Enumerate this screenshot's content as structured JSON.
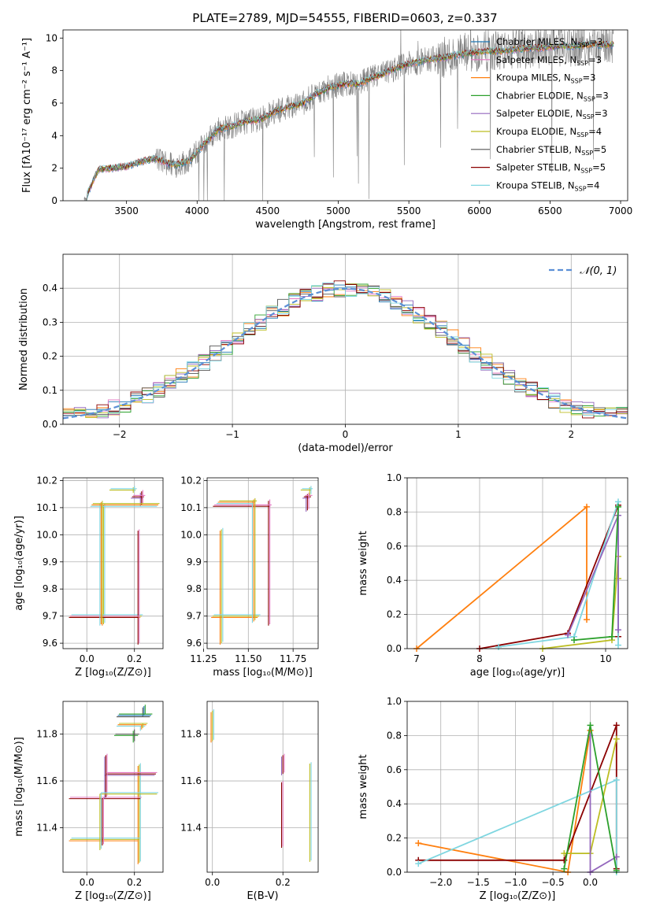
{
  "title": "PLATE=2789, MJD=54555, FIBERID=0603, z=0.337",
  "colors": {
    "chabrier_miles": "#1f77b4",
    "salpeter_miles": "#e377c2",
    "kroupa_miles": "#ff7f0e",
    "chabrier_elodie": "#2ca02c",
    "salpeter_elodie": "#9467bd",
    "kroupa_elodie": "#bcbd22",
    "chabrier_stelib": "#555555",
    "salpeter_stelib": "#8b0000",
    "kroupa_stelib": "#7fd6e0",
    "data": "#808080",
    "normal": "#5b8fd6"
  },
  "chart_data": [
    {
      "id": "spectrum",
      "type": "line",
      "xlabel": "wavelength [Angstrom, rest frame]",
      "ylabel": "Flux [fλ10⁻¹⁷ erg cm⁻² s⁻¹ A⁻¹]",
      "xlim": [
        3050,
        7050
      ],
      "ylim": [
        0,
        10.5
      ],
      "xticks": [
        "3500",
        "4000",
        "4500",
        "5000",
        "5500",
        "6000",
        "6500",
        "7000"
      ],
      "yticks": [
        "0",
        "2",
        "4",
        "6",
        "8",
        "10"
      ],
      "grid": false,
      "legend_position": "top-right",
      "x": [
        3200,
        3300,
        3400,
        3500,
        3600,
        3700,
        3800,
        3850,
        3950,
        4050,
        4150,
        4250,
        4350,
        4450,
        4550,
        4650,
        4750,
        4850,
        4950,
        5050,
        5150,
        5250,
        5350,
        5450,
        5550,
        5650,
        5750,
        5850,
        5950,
        6050,
        6150,
        6250,
        6350,
        6450,
        6550,
        6650,
        6750,
        6850,
        6950
      ],
      "y_model": [
        0.0,
        1.9,
        2.0,
        2.1,
        2.4,
        2.6,
        2.3,
        2.2,
        2.5,
        3.5,
        4.4,
        4.6,
        4.9,
        5.0,
        5.5,
        5.8,
        6.0,
        6.6,
        7.0,
        7.2,
        7.2,
        7.6,
        7.9,
        8.3,
        8.5,
        8.7,
        8.8,
        9.0,
        9.1,
        9.2,
        9.2,
        9.3,
        9.4,
        9.4,
        9.5,
        9.5,
        9.6,
        9.6,
        9.6
      ],
      "series": [
        {
          "name": "Chabrier MILES, N_SSP=3",
          "label_parts": [
            "Chabrier MILES, N",
            "SSP",
            "=3"
          ]
        },
        {
          "name": "Salpeter MILES, N_SSP=3",
          "label_parts": [
            "Salpeter MILES, N",
            "SSP",
            "=3"
          ]
        },
        {
          "name": "Kroupa MILES, N_SSP=3",
          "label_parts": [
            "Kroupa MILES, N",
            "SSP",
            "=3"
          ]
        },
        {
          "name": "Chabrier ELODIE, N_SSP=3",
          "label_parts": [
            "Chabrier ELODIE, N",
            "SSP",
            "=3"
          ]
        },
        {
          "name": "Salpeter ELODIE, N_SSP=3",
          "label_parts": [
            "Salpeter ELODIE, N",
            "SSP",
            "=3"
          ]
        },
        {
          "name": "Kroupa ELODIE, N_SSP=4",
          "label_parts": [
            "Kroupa ELODIE, N",
            "SSP",
            "=4"
          ]
        },
        {
          "name": "Chabrier STELIB, N_SSP=5",
          "label_parts": [
            "Chabrier STELIB, N",
            "SSP",
            "=5"
          ]
        },
        {
          "name": "Salpeter STELIB, N_SSP=5",
          "label_parts": [
            "Salpeter STELIB, N",
            "SSP",
            "=5"
          ]
        },
        {
          "name": "Kroupa STELIB, N_SSP=4",
          "label_parts": [
            "Kroupa STELIB, N",
            "SSP",
            "=4"
          ]
        }
      ]
    },
    {
      "id": "residuals",
      "type": "bar",
      "xlabel": "(data-model)/error",
      "ylabel": "Normed distribution",
      "xlim": [
        -2.5,
        2.5
      ],
      "ylim": [
        0,
        0.5
      ],
      "xticks": [
        "−2",
        "−1",
        "0",
        "1",
        "2"
      ],
      "yticks": [
        "0.0",
        "0.1",
        "0.2",
        "0.3",
        "0.4"
      ],
      "grid": true,
      "legend_position": "top-right",
      "legend_label": "𝒩(0, 1)",
      "bin_width": 0.1,
      "bin_start": -2.5,
      "hist": [
        0.025,
        0.03,
        0.035,
        0.04,
        0.045,
        0.05,
        0.06,
        0.07,
        0.08,
        0.09,
        0.1,
        0.11,
        0.125,
        0.14,
        0.155,
        0.17,
        0.185,
        0.2,
        0.215,
        0.23,
        0.245,
        0.26,
        0.275,
        0.29,
        0.305,
        0.32,
        0.335,
        0.35,
        0.36,
        0.37,
        0.38,
        0.39,
        0.4,
        0.405,
        0.41,
        0.405,
        0.4,
        0.39,
        0.38,
        0.37,
        0.36,
        0.345,
        0.33,
        0.315,
        0.3,
        0.285,
        0.27,
        0.255,
        0.24,
        0.225,
        0.21,
        0.195,
        0.18,
        0.165,
        0.15,
        0.135,
        0.12,
        0.105,
        0.09,
        0.08,
        0.07,
        0.06,
        0.055,
        0.05,
        0.045,
        0.04,
        0.035,
        0.03,
        0.03,
        0.025,
        0.025,
        0.02,
        0.02,
        0.02,
        0.02,
        0.02,
        0.02,
        0.02,
        0.02,
        0.02,
        0.02,
        0.02,
        0.02,
        0.02,
        0.02,
        0.02,
        0.02,
        0.02,
        0.02,
        0.02,
        0.02,
        0.02,
        0.02,
        0.02,
        0.02,
        0.02,
        0.02,
        0.02,
        0.02,
        0.02
      ]
    },
    {
      "id": "age_vs_Z",
      "type": "scatter",
      "xlabel": "Z [log₁₀(Z/Z⊙)]",
      "ylabel": "age  [log₁₀(age/yr)]",
      "xlim": [
        -0.1,
        0.32
      ],
      "ylim": [
        9.58,
        10.21
      ],
      "xticks": [
        "0.0",
        "0.2"
      ],
      "yticks": [
        "9.6",
        "9.7",
        "9.8",
        "9.9",
        "10.0",
        "10.1",
        "10.2"
      ],
      "grid": true,
      "points": [
        {
          "x": 0.07,
          "y": 9.7,
          "xerr": [
            0.14,
            0.16
          ],
          "yerr": [
            0.03,
            0.41
          ]
        },
        {
          "x": 0.22,
          "y": 9.7,
          "xerr": [
            0.29,
            0.0
          ],
          "yerr": [
            0.1,
            0.32
          ]
        },
        {
          "x": 0.23,
          "y": 10.14,
          "xerr": [
            0.04,
            0.01
          ],
          "yerr": [
            0.03,
            0.02
          ]
        },
        {
          "x": 0.2,
          "y": 10.17,
          "xerr": [
            0.1,
            0.01
          ],
          "yerr": [
            0.01,
            0.01
          ]
        },
        {
          "x": 0.06,
          "y": 10.11,
          "xerr": [
            0.04,
            0.24
          ],
          "yerr": [
            0.44,
            0.01
          ]
        }
      ]
    },
    {
      "id": "age_vs_mass",
      "type": "scatter",
      "xlabel": "mass [log₁₀(M/M⊙)]",
      "ylabel": "",
      "xlim": [
        11.27,
        11.89
      ],
      "ylim": [
        9.58,
        10.21
      ],
      "xticks": [
        "11.25",
        "11.50",
        "11.75"
      ],
      "yticks": [
        "9.6",
        "9.7",
        "9.8",
        "9.9",
        "10.0",
        "10.1",
        "10.2"
      ],
      "grid": true,
      "points": [
        {
          "x": 11.35,
          "y": 9.7,
          "xerr": [
            0.05,
            0.21
          ],
          "yerr": [
            0.1,
            0.32
          ]
        },
        {
          "x": 11.62,
          "y": 10.11,
          "xerr": [
            0.31,
            0.01
          ],
          "yerr": [
            0.44,
            0.02
          ]
        },
        {
          "x": 11.83,
          "y": 10.14,
          "xerr": [
            0.02,
            0.02
          ],
          "yerr": [
            0.05,
            0.01
          ]
        },
        {
          "x": 11.85,
          "y": 10.17,
          "xerr": [
            0.05,
            0.01
          ],
          "yerr": [
            0.02,
            0.01
          ]
        },
        {
          "x": 11.53,
          "y": 10.12,
          "xerr": [
            0.2,
            0.01
          ],
          "yerr": [
            0.44,
            0.01
          ]
        }
      ]
    },
    {
      "id": "mass_weight_vs_age",
      "type": "line",
      "xlabel": "age  [log₁₀(age/yr)]",
      "ylabel": "mass weight",
      "xlim": [
        6.85,
        10.35
      ],
      "ylim": [
        0,
        1.0
      ],
      "xticks": [
        "7",
        "8",
        "9",
        "10"
      ],
      "yticks": [
        "0.0",
        "0.2",
        "0.4",
        "0.6",
        "0.8",
        "1.0"
      ],
      "grid": true,
      "lines": [
        [
          [
            7.0,
            0.0
          ],
          [
            9.7,
            0.83
          ],
          [
            9.7,
            0.17
          ]
        ],
        [
          [
            8.0,
            0.0
          ],
          [
            9.4,
            0.09
          ],
          [
            10.2,
            0.84
          ],
          [
            10.2,
            0.07
          ]
        ],
        [
          [
            8.3,
            0.01
          ],
          [
            9.5,
            0.07
          ],
          [
            10.2,
            0.86
          ],
          [
            10.2,
            0.02
          ]
        ],
        [
          [
            9.0,
            0.0
          ],
          [
            10.1,
            0.05
          ],
          [
            10.2,
            0.54
          ],
          [
            10.2,
            0.41
          ]
        ],
        [
          [
            9.4,
            0.08
          ],
          [
            10.2,
            0.78
          ],
          [
            10.2,
            0.11
          ]
        ],
        [
          [
            9.5,
            0.05
          ],
          [
            10.1,
            0.07
          ],
          [
            10.2,
            0.83
          ]
        ]
      ]
    },
    {
      "id": "mass_vs_Z",
      "type": "scatter",
      "xlabel": "Z [log₁₀(Z/Z⊙)]",
      "ylabel": "mass [log₁₀(M/M⊙)]",
      "xlim": [
        -0.1,
        0.32
      ],
      "ylim": [
        11.21,
        11.94
      ],
      "xticks": [
        "0.0",
        "0.2"
      ],
      "yticks": [
        "11.4",
        "11.6",
        "11.8"
      ],
      "grid": true,
      "points": [
        {
          "x": 0.22,
          "y": 11.35,
          "xerr": [
            0.29,
            0.0
          ],
          "yerr": [
            0.1,
            0.32
          ]
        },
        {
          "x": 0.07,
          "y": 11.53,
          "xerr": [
            0.14,
            0.16
          ],
          "yerr": [
            0.2,
            0.0
          ]
        },
        {
          "x": 0.08,
          "y": 11.63,
          "xerr": [
            0.0,
            0.21
          ],
          "yerr": [
            0.1,
            0.08
          ]
        },
        {
          "x": 0.06,
          "y": 11.55,
          "xerr": [
            0.0,
            0.24
          ],
          "yerr": [
            0.24,
            0.0
          ]
        },
        {
          "x": 0.23,
          "y": 11.84,
          "xerr": [
            0.1,
            0.02
          ],
          "yerr": [
            0.02,
            0.0
          ]
        },
        {
          "x": 0.2,
          "y": 11.8,
          "xerr": [
            0.08,
            0.02
          ],
          "yerr": [
            0.03,
            0.02
          ]
        },
        {
          "x": 0.24,
          "y": 11.88,
          "xerr": [
            0.11,
            0.03
          ],
          "yerr": [
            0.0,
            0.04
          ]
        }
      ]
    },
    {
      "id": "mass_vs_EBV",
      "type": "scatter",
      "xlabel": "E(B-V)",
      "ylabel": "",
      "xlim": [
        -0.015,
        0.3
      ],
      "ylim": [
        11.21,
        11.94
      ],
      "xticks": [
        "0.0",
        "0.2"
      ],
      "yticks": [
        "11.4",
        "11.6",
        "11.8"
      ],
      "grid": true,
      "points": [
        {
          "x": 0.0,
          "y": 11.8,
          "xerr": [
            0,
            0
          ],
          "yerr": [
            0.03,
            0.1
          ]
        },
        {
          "x": 0.2,
          "y": 11.6,
          "xerr": [
            0,
            0
          ],
          "yerr": [
            0.28,
            0.0
          ]
        },
        {
          "x": 0.2,
          "y": 11.63,
          "xerr": [
            0,
            0
          ],
          "yerr": [
            0.0,
            0.08
          ]
        },
        {
          "x": 0.28,
          "y": 11.55,
          "xerr": [
            0,
            0
          ],
          "yerr": [
            0.29,
            0.13
          ]
        }
      ]
    },
    {
      "id": "mass_weight_vs_Z",
      "type": "line",
      "xlabel": "Z [log₁₀(Z/Z⊙)]",
      "ylabel": "mass weight",
      "xlim": [
        -2.45,
        0.5
      ],
      "ylim": [
        0,
        1.0
      ],
      "xticks": [
        "−2.0",
        "−1.5",
        "−1.0",
        "−0.5",
        "0.0"
      ],
      "yticks": [
        "0.0",
        "0.2",
        "0.4",
        "0.6",
        "0.8",
        "1.0"
      ],
      "grid": true,
      "lines": [
        [
          [
            -2.3,
            0.17
          ],
          [
            -0.3,
            0.0
          ],
          [
            0.0,
            0.83
          ]
        ],
        [
          [
            -2.3,
            0.07
          ],
          [
            -0.35,
            0.07
          ],
          [
            0.35,
            0.86
          ],
          [
            0.35,
            0.02
          ]
        ],
        [
          [
            -2.3,
            0.05
          ],
          [
            0.35,
            0.54
          ],
          [
            0.35,
            0.0
          ]
        ],
        [
          [
            -0.35,
            0.11
          ],
          [
            0.0,
            0.11
          ],
          [
            0.35,
            0.78
          ]
        ],
        [
          [
            0.0,
            0.8
          ],
          [
            0.0,
            0.0
          ],
          [
            0.35,
            0.09
          ]
        ],
        [
          [
            -0.35,
            0.02
          ],
          [
            0.0,
            0.86
          ],
          [
            0.35,
            0.01
          ]
        ]
      ]
    }
  ]
}
